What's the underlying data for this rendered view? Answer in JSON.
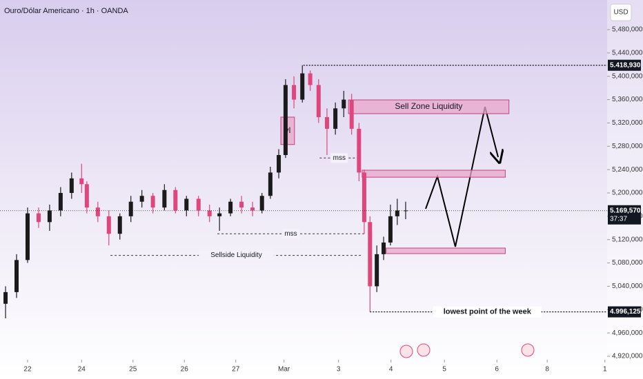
{
  "chart_data": {
    "type": "candlestick",
    "title": "Ouro/Dólar Americano · 1h · OANDA",
    "currency": "USD",
    "up_color": "#1b1b1b",
    "down_color": "#e0457b",
    "xlim": [
      -0.526,
      11.026
    ],
    "ylim": [
      4.9141,
      5.5308
    ],
    "xticks": [
      {
        "value": 0,
        "label": "22"
      },
      {
        "value": 1.03,
        "label": "24"
      },
      {
        "value": 2.01,
        "label": "25"
      },
      {
        "value": 2.99,
        "label": "26"
      },
      {
        "value": 3.97,
        "label": "27"
      },
      {
        "value": 4.89,
        "label": "Mar"
      },
      {
        "value": 5.93,
        "label": "3"
      },
      {
        "value": 6.93,
        "label": "4"
      },
      {
        "value": 7.95,
        "label": "5"
      },
      {
        "value": 8.95,
        "label": "6"
      },
      {
        "value": 9.91,
        "label": "8"
      },
      {
        "value": 11.01,
        "label": "1"
      }
    ],
    "yticks": [
      {
        "value": 4.92,
        "label": "4,920,000"
      },
      {
        "value": 4.96,
        "label": "4,960,000"
      },
      {
        "value": 5.0,
        "label": "5,000,000"
      },
      {
        "value": 5.04,
        "label": "5,040,000"
      },
      {
        "value": 5.08,
        "label": "5,080,000"
      },
      {
        "value": 5.12,
        "label": "5,120,000"
      },
      {
        "value": 5.16,
        "label": "5,160,000"
      },
      {
        "value": 5.2,
        "label": "5,200,000"
      },
      {
        "value": 5.24,
        "label": "5,240,000"
      },
      {
        "value": 5.28,
        "label": "5,280,000"
      },
      {
        "value": 5.32,
        "label": "5,320,000"
      },
      {
        "value": 5.36,
        "label": "5,360,000"
      },
      {
        "value": 5.4,
        "label": "5,400,000"
      },
      {
        "value": 5.44,
        "label": "5,440,000"
      },
      {
        "value": 5.48,
        "label": "5,480,000"
      }
    ],
    "candles": {
      "x": [
        -0.42,
        -0.21,
        0,
        0.21,
        0.42,
        0.63,
        0.84,
        1.03,
        1.13,
        1.34,
        1.55,
        1.76,
        1.97,
        2.18,
        2.39,
        2.61,
        2.82,
        3.03,
        3.26,
        3.47,
        3.66,
        3.87,
        4.08,
        4.29,
        4.47,
        4.63,
        4.79,
        4.92,
        5.08,
        5.24,
        5.39,
        5.55,
        5.71,
        5.87,
        6.03,
        6.18,
        6.32,
        6.42,
        6.53,
        6.66,
        6.79,
        6.92,
        7.05,
        7.21
      ],
      "open": [
        5.01,
        5.03,
        5.085,
        5.165,
        5.15,
        5.17,
        5.2,
        5.225,
        5.215,
        5.175,
        5.16,
        5.13,
        5.16,
        5.185,
        5.195,
        5.175,
        5.205,
        5.17,
        5.19,
        5.17,
        5.16,
        5.165,
        5.185,
        5.175,
        5.17,
        5.195,
        5.235,
        5.265,
        5.385,
        5.36,
        5.405,
        5.385,
        5.33,
        5.31,
        5.345,
        5.36,
        5.31,
        5.235,
        5.15,
        5.04,
        5.095,
        5.115,
        5.16,
        5.17
      ],
      "high": [
        5.04,
        5.095,
        5.175,
        5.175,
        5.18,
        5.21,
        5.235,
        5.25,
        5.22,
        5.185,
        5.17,
        5.165,
        5.195,
        5.205,
        5.2,
        5.215,
        5.21,
        5.195,
        5.195,
        5.18,
        5.175,
        5.19,
        5.195,
        5.185,
        5.2,
        5.245,
        5.275,
        5.395,
        5.4,
        5.419,
        5.41,
        5.395,
        5.345,
        5.355,
        5.375,
        5.37,
        5.32,
        5.24,
        5.16,
        5.11,
        5.125,
        5.18,
        5.19,
        5.185
      ],
      "low": [
        4.985,
        5.02,
        5.08,
        5.14,
        5.135,
        5.16,
        5.19,
        5.2,
        5.165,
        5.15,
        5.11,
        5.12,
        5.15,
        5.175,
        5.165,
        5.17,
        5.165,
        5.16,
        5.16,
        5.15,
        5.135,
        5.16,
        5.165,
        5.16,
        5.165,
        5.19,
        5.225,
        5.26,
        5.345,
        5.355,
        5.375,
        5.32,
        5.265,
        5.3,
        5.33,
        5.3,
        5.22,
        5.13,
        4.996,
        5.03,
        5.085,
        5.11,
        5.145,
        5.155
      ],
      "close": [
        5.03,
        5.085,
        5.165,
        5.15,
        5.17,
        5.2,
        5.225,
        5.215,
        5.175,
        5.16,
        5.13,
        5.16,
        5.185,
        5.195,
        5.175,
        5.205,
        5.17,
        5.19,
        5.17,
        5.16,
        5.165,
        5.185,
        5.175,
        5.17,
        5.195,
        5.235,
        5.265,
        5.385,
        5.36,
        5.405,
        5.385,
        5.33,
        5.31,
        5.345,
        5.36,
        5.31,
        5.235,
        5.15,
        5.04,
        5.095,
        5.115,
        5.16,
        5.17,
        5.17
      ]
    },
    "price_lines": [
      {
        "value": 5.41893,
        "label": "5.418,930",
        "from": 5.26
      },
      {
        "value": 5.16957,
        "label": "5.169,570",
        "timer": "37:37",
        "from": -0.526
      },
      {
        "value": 4.996125,
        "label": "4.996,125",
        "from": 6.53,
        "text": "lowest point of the week"
      }
    ],
    "zones": [
      {
        "x": [
          6.12,
          9.18
        ],
        "y": [
          5.3359,
          5.3595
        ],
        "text": "Sell Zone Liquidity"
      },
      {
        "x": [
          6.38,
          9.11
        ],
        "y": [
          5.227,
          5.239
        ]
      },
      {
        "x": [
          6.84,
          9.11
        ],
        "y": [
          5.096,
          5.1055
        ]
      },
      {
        "x": [
          4.83,
          5.09
        ],
        "y": [
          5.283,
          5.33
        ],
        "text": "vl"
      }
    ],
    "levels": [
      {
        "y": 5.26,
        "x": [
          5.57,
          6.32
        ],
        "text": "mss"
      },
      {
        "y": 5.13,
        "x": [
          3.62,
          6.42
        ],
        "text": "mss"
      },
      {
        "y": 5.093,
        "x": [
          1.58,
          6.38
        ],
        "text": "Sellside Liquidity"
      }
    ]
  }
}
